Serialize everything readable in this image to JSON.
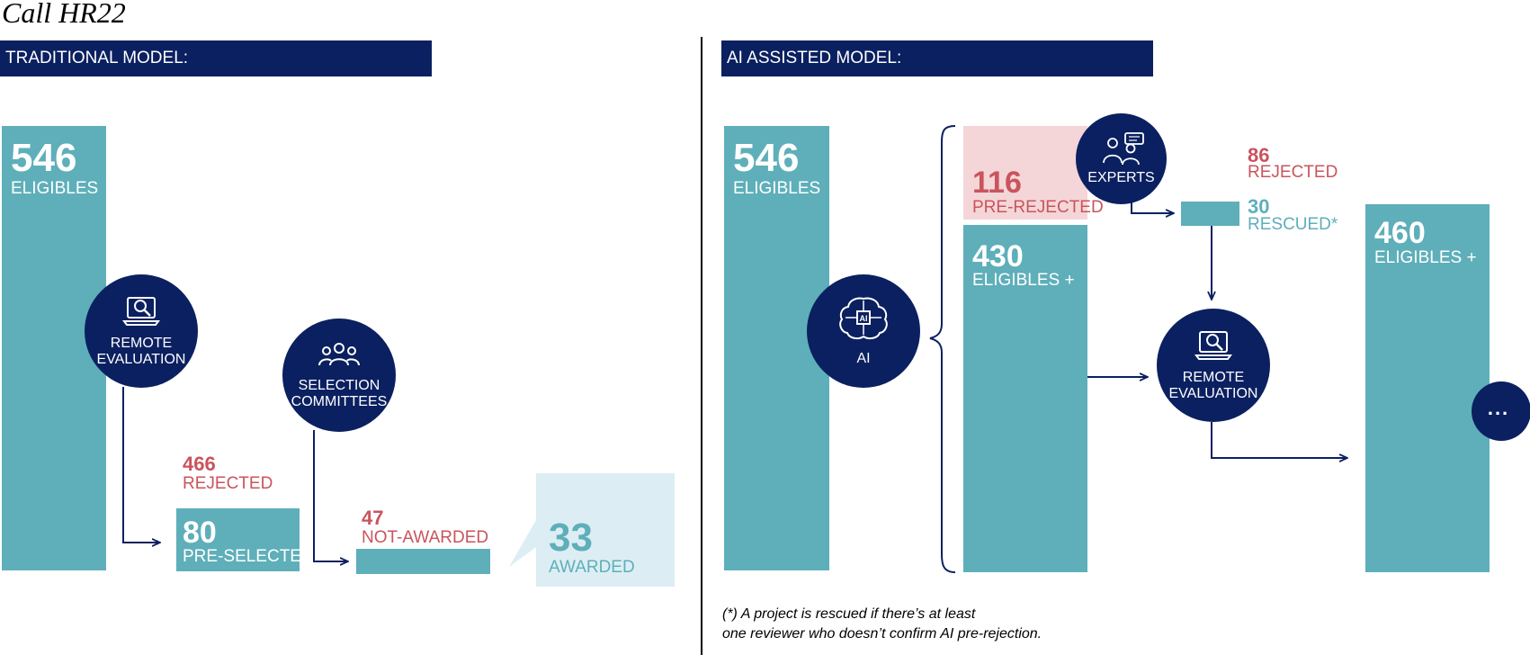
{
  "title": "Call HR22",
  "traditional": {
    "header": "TRADITIONAL MODEL:",
    "eligibles_num": "546",
    "eligibles_label": "ELIGIBLES",
    "remote_eval_label": [
      "REMOTE",
      "EVALUATION"
    ],
    "selection_label": [
      "SELECTION",
      "COMMITTEES"
    ],
    "rejected_num": "466",
    "rejected_label": "REJECTED",
    "preselected_num": "80",
    "preselected_label": "PRE-SELECTED",
    "notawarded_num": "47",
    "notawarded_label": "NOT-AWARDED",
    "awarded_num": "33",
    "awarded_label": "AWARDED"
  },
  "ai": {
    "header": "AI ASSISTED MODEL:",
    "eligibles_num": "546",
    "eligibles_label": "ELIGIBLES",
    "ai_label": "AI",
    "prerejected_num": "116",
    "prerejected_label": "PRE-REJECTED",
    "experts_label": "EXPERTS",
    "rejected_num": "86",
    "rejected_label": "REJECTED",
    "rescued_num": "30",
    "rescued_label": "RESCUED*",
    "eligplus_num": "430",
    "eligplus_label": "ELIGIBLES +",
    "remote_eval_label": [
      "REMOTE",
      "EVALUATION"
    ],
    "final_num": "460",
    "final_label": "ELIGIBLES +",
    "more_label": "..."
  },
  "footnote": {
    "line1": "(*) A project is rescued if there’s at least",
    "line2": "one reviewer who doesn’t confirm AI pre-rejection."
  },
  "colors": {
    "navy": "#0b2060",
    "teal": "#5eafba",
    "red": "#c9545d",
    "pink": "#f4d6d8",
    "light_teal": "#dceef3"
  },
  "icons": [
    "laptop-magnifier-icon",
    "group-people-icon",
    "ai-brain-icon",
    "experts-chat-icon"
  ]
}
